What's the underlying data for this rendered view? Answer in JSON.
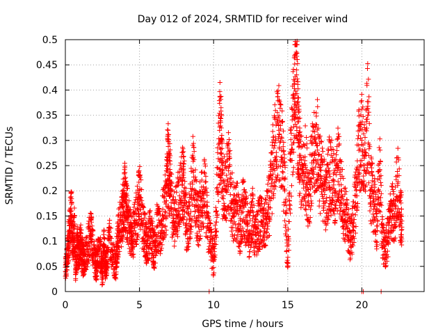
{
  "chart_data": {
    "type": "scatter",
    "title": "Day 012 of 2024, SRMTID for receiver wind",
    "xlabel": "GPS time / hours",
    "ylabel": "SRMTID / TECUs",
    "xlim": [
      0,
      24.2
    ],
    "ylim": [
      0,
      0.5
    ],
    "xticks": [
      0,
      5,
      10,
      15,
      20
    ],
    "xtick_labels": [
      "0",
      "5",
      "10",
      "15",
      "20"
    ],
    "yticks": [
      0,
      0.05,
      0.1,
      0.15,
      0.2,
      0.25,
      0.3,
      0.35,
      0.4,
      0.45,
      0.5
    ],
    "ytick_labels": [
      "0",
      "0.05",
      "0.1",
      "0.15",
      "0.2",
      "0.25",
      "0.3",
      "0.35",
      "0.4",
      "0.45",
      "0.5"
    ],
    "grid": true,
    "marker": "plus",
    "color": "#ff0000",
    "series": [
      {
        "name": "SRMTID",
        "points_sampled": [
          [
            0.0,
            0.04
          ],
          [
            0.1,
            0.06
          ],
          [
            0.2,
            0.1
          ],
          [
            0.3,
            0.12
          ],
          [
            0.4,
            0.16
          ],
          [
            0.5,
            0.09
          ],
          [
            0.6,
            0.13
          ],
          [
            0.7,
            0.04
          ],
          [
            0.8,
            0.09
          ],
          [
            0.9,
            0.07
          ],
          [
            1.0,
            0.1
          ],
          [
            1.1,
            0.08
          ],
          [
            1.2,
            0.06
          ],
          [
            1.3,
            0.07
          ],
          [
            1.5,
            0.09
          ],
          [
            1.7,
            0.12
          ],
          [
            1.8,
            0.1
          ],
          [
            2.0,
            0.06
          ],
          [
            2.1,
            0.05
          ],
          [
            2.2,
            0.08
          ],
          [
            2.4,
            0.07
          ],
          [
            2.5,
            0.03
          ],
          [
            2.6,
            0.09
          ],
          [
            2.7,
            0.05
          ],
          [
            2.8,
            0.06
          ],
          [
            3.0,
            0.11
          ],
          [
            3.2,
            0.07
          ],
          [
            3.4,
            0.05
          ],
          [
            3.5,
            0.1
          ],
          [
            3.6,
            0.12
          ],
          [
            3.8,
            0.14
          ],
          [
            3.9,
            0.17
          ],
          [
            4.0,
            0.19
          ],
          [
            4.1,
            0.16
          ],
          [
            4.2,
            0.15
          ],
          [
            4.4,
            0.12
          ],
          [
            4.5,
            0.1
          ],
          [
            4.7,
            0.14
          ],
          [
            4.9,
            0.16
          ],
          [
            5.0,
            0.2
          ],
          [
            5.2,
            0.13
          ],
          [
            5.4,
            0.11
          ],
          [
            5.5,
            0.09
          ],
          [
            5.7,
            0.12
          ],
          [
            5.9,
            0.1
          ],
          [
            6.0,
            0.08
          ],
          [
            6.2,
            0.13
          ],
          [
            6.4,
            0.11
          ],
          [
            6.6,
            0.15
          ],
          [
            6.8,
            0.18
          ],
          [
            6.9,
            0.26
          ],
          [
            7.0,
            0.23
          ],
          [
            7.1,
            0.2
          ],
          [
            7.3,
            0.14
          ],
          [
            7.5,
            0.16
          ],
          [
            7.7,
            0.19
          ],
          [
            7.9,
            0.22
          ],
          [
            8.0,
            0.2
          ],
          [
            8.2,
            0.12
          ],
          [
            8.4,
            0.15
          ],
          [
            8.6,
            0.24
          ],
          [
            8.8,
            0.17
          ],
          [
            9.0,
            0.14
          ],
          [
            9.2,
            0.19
          ],
          [
            9.4,
            0.2
          ],
          [
            9.6,
            0.13
          ],
          [
            9.8,
            0.1
          ],
          [
            10.0,
            0.06
          ],
          [
            10.2,
            0.16
          ],
          [
            10.4,
            0.32
          ],
          [
            10.5,
            0.3
          ],
          [
            10.6,
            0.22
          ],
          [
            10.8,
            0.2
          ],
          [
            11.0,
            0.24
          ],
          [
            11.2,
            0.18
          ],
          [
            11.4,
            0.15
          ],
          [
            11.6,
            0.16
          ],
          [
            11.8,
            0.12
          ],
          [
            12.0,
            0.17
          ],
          [
            12.2,
            0.14
          ],
          [
            12.4,
            0.11
          ],
          [
            12.6,
            0.16
          ],
          [
            12.8,
            0.1
          ],
          [
            13.0,
            0.13
          ],
          [
            13.2,
            0.14
          ],
          [
            13.4,
            0.12
          ],
          [
            13.6,
            0.15
          ],
          [
            13.8,
            0.18
          ],
          [
            14.0,
            0.25
          ],
          [
            14.2,
            0.3
          ],
          [
            14.4,
            0.32
          ],
          [
            14.6,
            0.28
          ],
          [
            14.8,
            0.2
          ],
          [
            15.0,
            0.05
          ],
          [
            15.2,
            0.26
          ],
          [
            15.4,
            0.35
          ],
          [
            15.5,
            0.47
          ],
          [
            15.6,
            0.43
          ],
          [
            15.7,
            0.3
          ],
          [
            15.8,
            0.26
          ],
          [
            16.0,
            0.22
          ],
          [
            16.2,
            0.25
          ],
          [
            16.4,
            0.19
          ],
          [
            16.6,
            0.24
          ],
          [
            16.8,
            0.27
          ],
          [
            17.0,
            0.29
          ],
          [
            17.2,
            0.23
          ],
          [
            17.4,
            0.21
          ],
          [
            17.6,
            0.18
          ],
          [
            17.8,
            0.24
          ],
          [
            18.0,
            0.22
          ],
          [
            18.2,
            0.19
          ],
          [
            18.4,
            0.25
          ],
          [
            18.6,
            0.2
          ],
          [
            18.8,
            0.16
          ],
          [
            19.0,
            0.14
          ],
          [
            19.2,
            0.1
          ],
          [
            19.4,
            0.13
          ],
          [
            19.6,
            0.19
          ],
          [
            19.8,
            0.28
          ],
          [
            20.0,
            0.3
          ],
          [
            20.2,
            0.24
          ],
          [
            20.4,
            0.35
          ],
          [
            20.6,
            0.2
          ],
          [
            20.8,
            0.18
          ],
          [
            21.0,
            0.13
          ],
          [
            21.2,
            0.24
          ],
          [
            21.4,
            0.1
          ],
          [
            21.6,
            0.08
          ],
          [
            21.8,
            0.12
          ],
          [
            22.0,
            0.17
          ],
          [
            22.2,
            0.13
          ],
          [
            22.4,
            0.23
          ],
          [
            22.6,
            0.15
          ],
          [
            22.7,
            0.14
          ]
        ],
        "points_near_zero": [
          [
            9.7,
            0.0
          ],
          [
            20.0,
            0.0
          ],
          [
            20.1,
            0.0
          ],
          [
            21.3,
            0.0
          ]
        ]
      }
    ]
  }
}
